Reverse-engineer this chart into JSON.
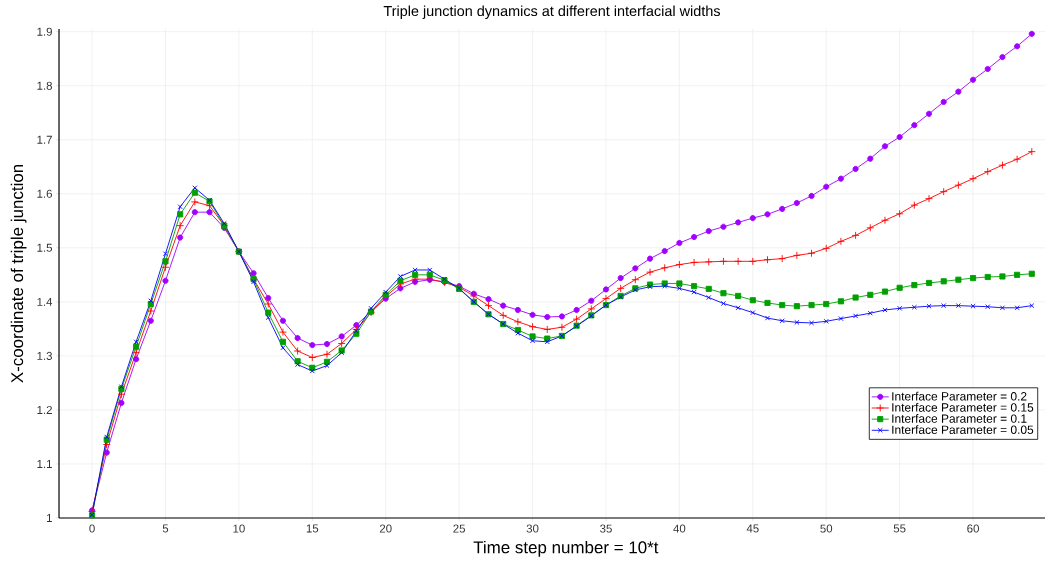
{
  "chart_data": {
    "type": "line",
    "title": "Triple junction dynamics at different interfacial widths",
    "xlabel": "Time step number = 10*t",
    "ylabel": "X-coordinate of triple junction",
    "x": [
      0,
      1,
      2,
      3,
      4,
      5,
      6,
      7,
      8,
      9,
      10,
      11,
      12,
      13,
      14,
      15,
      16,
      17,
      18,
      19,
      20,
      21,
      22,
      23,
      24,
      25,
      26,
      27,
      28,
      29,
      30,
      31,
      32,
      33,
      34,
      35,
      36,
      37,
      38,
      39,
      40,
      41,
      42,
      43,
      44,
      45,
      46,
      47,
      48,
      49,
      50,
      51,
      52,
      53,
      54,
      55,
      56,
      57,
      58,
      59,
      60,
      61,
      62,
      63,
      64
    ],
    "series": [
      {
        "name": "Interface Parameter = 0.2",
        "color": "#a000ff",
        "marker": "circle",
        "values": [
          1.014,
          1.121,
          1.213,
          1.294,
          1.365,
          1.439,
          1.519,
          1.566,
          1.566,
          1.537,
          1.493,
          1.453,
          1.407,
          1.365,
          1.333,
          1.32,
          1.322,
          1.336,
          1.357,
          1.382,
          1.406,
          1.425,
          1.437,
          1.441,
          1.437,
          1.429,
          1.415,
          1.405,
          1.393,
          1.385,
          1.376,
          1.372,
          1.373,
          1.385,
          1.402,
          1.423,
          1.444,
          1.462,
          1.48,
          1.494,
          1.509,
          1.52,
          1.531,
          1.539,
          1.547,
          1.555,
          1.562,
          1.572,
          1.583,
          1.596,
          1.613,
          1.628,
          1.646,
          1.665,
          1.688,
          1.705,
          1.727,
          1.748,
          1.77,
          1.789,
          1.811,
          1.831,
          1.853,
          1.873,
          1.896
        ]
      },
      {
        "name": "Interface Parameter = 0.15",
        "color": "#ff0000",
        "marker": "plus",
        "values": [
          1.012,
          1.136,
          1.229,
          1.306,
          1.383,
          1.464,
          1.541,
          1.585,
          1.578,
          1.541,
          1.493,
          1.442,
          1.396,
          1.344,
          1.309,
          1.297,
          1.303,
          1.323,
          1.349,
          1.38,
          1.41,
          1.433,
          1.442,
          1.442,
          1.436,
          1.427,
          1.411,
          1.393,
          1.375,
          1.363,
          1.354,
          1.349,
          1.353,
          1.368,
          1.387,
          1.406,
          1.425,
          1.441,
          1.455,
          1.463,
          1.469,
          1.473,
          1.474,
          1.475,
          1.475,
          1.475,
          1.478,
          1.48,
          1.486,
          1.49,
          1.499,
          1.512,
          1.523,
          1.537,
          1.551,
          1.563,
          1.579,
          1.591,
          1.604,
          1.616,
          1.628,
          1.641,
          1.653,
          1.664,
          1.678
        ]
      },
      {
        "name": "Interface Parameter = 0.1",
        "color": "#00a000",
        "marker": "square",
        "values": [
          1.005,
          1.145,
          1.239,
          1.317,
          1.396,
          1.475,
          1.562,
          1.602,
          1.586,
          1.541,
          1.493,
          1.442,
          1.38,
          1.326,
          1.29,
          1.278,
          1.289,
          1.31,
          1.341,
          1.382,
          1.413,
          1.439,
          1.45,
          1.45,
          1.44,
          1.424,
          1.4,
          1.377,
          1.359,
          1.348,
          1.336,
          1.332,
          1.337,
          1.356,
          1.375,
          1.394,
          1.411,
          1.425,
          1.432,
          1.434,
          1.434,
          1.429,
          1.424,
          1.416,
          1.411,
          1.403,
          1.398,
          1.394,
          1.392,
          1.394,
          1.396,
          1.401,
          1.408,
          1.413,
          1.419,
          1.426,
          1.431,
          1.435,
          1.438,
          1.441,
          1.444,
          1.446,
          1.447,
          1.45,
          1.452
        ]
      },
      {
        "name": "Interface Parameter = 0.05",
        "color": "#0000ff",
        "marker": "cross",
        "values": [
          1.006,
          1.15,
          1.243,
          1.326,
          1.402,
          1.489,
          1.576,
          1.611,
          1.588,
          1.545,
          1.493,
          1.437,
          1.371,
          1.315,
          1.284,
          1.272,
          1.282,
          1.306,
          1.346,
          1.388,
          1.418,
          1.447,
          1.459,
          1.459,
          1.442,
          1.425,
          1.4,
          1.377,
          1.359,
          1.342,
          1.328,
          1.326,
          1.337,
          1.355,
          1.374,
          1.394,
          1.409,
          1.422,
          1.428,
          1.429,
          1.425,
          1.418,
          1.408,
          1.397,
          1.389,
          1.38,
          1.37,
          1.365,
          1.362,
          1.361,
          1.364,
          1.369,
          1.374,
          1.379,
          1.385,
          1.388,
          1.39,
          1.392,
          1.393,
          1.393,
          1.392,
          1.391,
          1.389,
          1.389,
          1.393
        ]
      }
    ],
    "xlim": [
      -2.25,
      64.9
    ],
    "ylim": [
      1,
      1.905
    ],
    "xticks": [
      0,
      5,
      10,
      15,
      20,
      25,
      30,
      35,
      40,
      45,
      50,
      55,
      60
    ],
    "yticks": [
      1,
      1.1,
      1.2,
      1.3,
      1.4,
      1.5,
      1.6,
      1.7,
      1.8,
      1.9
    ],
    "grid": true,
    "legend": "bottom right",
    "line_style": "solid"
  }
}
